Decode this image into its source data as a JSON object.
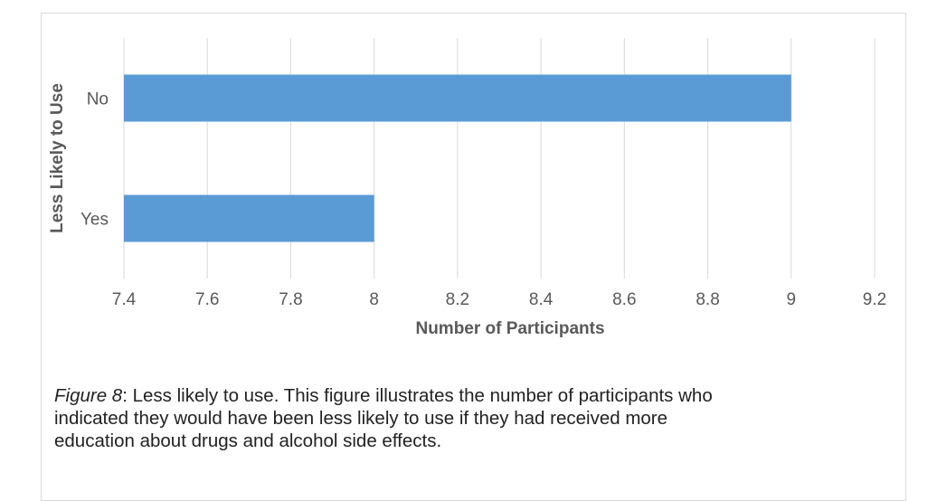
{
  "chart_data": {
    "type": "bar",
    "orientation": "horizontal",
    "categories": [
      "No",
      "Yes"
    ],
    "values": [
      9,
      8
    ],
    "xlabel": "Number of Participants",
    "ylabel": "Less Likely to Use",
    "xlim": [
      7.4,
      9.2
    ],
    "xticks": [
      "7.4",
      "7.6",
      "7.8",
      "8",
      "8.2",
      "8.4",
      "8.6",
      "8.8",
      "9",
      "9.2"
    ],
    "grid": "vertical",
    "bar_color": "#5b9bd5"
  },
  "caption": {
    "figure_label": "Figure 8",
    "text": ": Less likely to use. This figure illustrates the number of participants who indicated they would have been less likely to use if they had received more education about drugs and alcohol side effects."
  }
}
